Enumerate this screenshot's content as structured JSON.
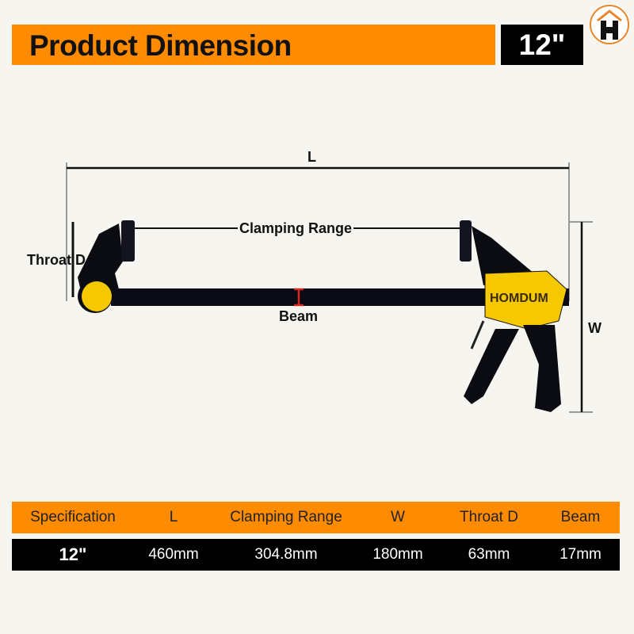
{
  "header": {
    "title": "Product Dimension",
    "size": "12\""
  },
  "logo": {
    "icon": "house-h-icon",
    "color": "#e8862a"
  },
  "diagram": {
    "length_label": "L",
    "clamping_label": "Clamping Range",
    "throat_label": "Throat D",
    "beam_label": "Beam",
    "width_label": "W",
    "brand": "HOMDUM"
  },
  "colors": {
    "accent": "#ff8c00",
    "tool_yellow": "#f5c800",
    "beam_marker": "#d42a1e"
  },
  "table": {
    "headers": [
      "Specification",
      "L",
      "Clamping Range",
      "W",
      "Throat D",
      "Beam"
    ],
    "rows": [
      [
        "12\"",
        "460mm",
        "304.8mm",
        "180mm",
        "63mm",
        "17mm"
      ]
    ]
  }
}
